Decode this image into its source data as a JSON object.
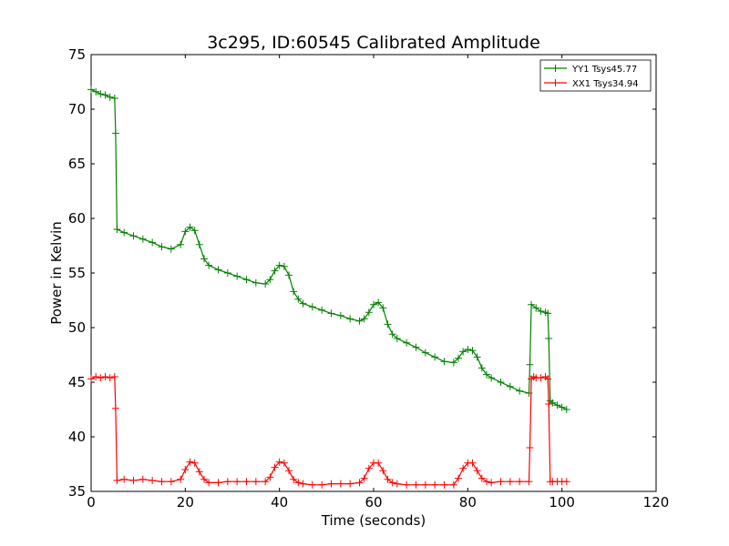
{
  "chart_data": {
    "type": "line",
    "title": "3c295, ID:60545 Calibrated Amplitude",
    "xlabel": "Time (seconds)",
    "ylabel": "Power in Kelvin",
    "xlim": [
      0,
      120
    ],
    "ylim": [
      35,
      75
    ],
    "xticks": [
      0,
      20,
      40,
      60,
      80,
      100,
      120
    ],
    "yticks": [
      35,
      40,
      45,
      50,
      55,
      60,
      65,
      70,
      75
    ],
    "grid": false,
    "legend_position": "top-right",
    "marker": "plus",
    "series": [
      {
        "name": "YY1 Tsys45.77",
        "color": "#008000",
        "x": [
          0,
          1,
          2,
          3,
          4,
          5,
          5.2,
          5.5,
          7,
          9,
          11,
          13,
          15,
          17,
          19,
          20,
          21,
          22,
          23,
          24,
          25,
          27,
          29,
          31,
          33,
          35,
          37,
          38,
          39,
          40,
          41,
          42,
          43,
          44,
          45,
          47,
          49,
          51,
          53,
          55,
          57,
          58,
          59,
          60,
          61,
          62,
          63,
          64,
          65,
          67,
          69,
          71,
          73,
          75,
          77,
          78,
          79,
          80,
          81,
          82,
          83,
          84,
          85,
          87,
          89,
          91,
          93,
          93.2,
          93.5,
          94.5,
          95.5,
          96.5,
          97,
          97.2,
          97.5,
          98,
          99,
          100,
          101
        ],
        "y": [
          71.8,
          71.6,
          71.4,
          71.3,
          71.1,
          71.0,
          67.8,
          59.0,
          58.7,
          58.4,
          58.1,
          57.8,
          57.4,
          57.2,
          57.6,
          58.8,
          59.2,
          58.9,
          57.6,
          56.3,
          55.7,
          55.3,
          55.0,
          54.7,
          54.4,
          54.1,
          54.0,
          54.4,
          55.2,
          55.7,
          55.6,
          54.8,
          53.3,
          52.6,
          52.2,
          51.9,
          51.6,
          51.3,
          51.1,
          50.8,
          50.6,
          50.8,
          51.4,
          52.1,
          52.3,
          51.8,
          50.3,
          49.4,
          49.0,
          48.6,
          48.2,
          47.7,
          47.3,
          46.9,
          46.8,
          47.2,
          47.8,
          48.0,
          47.9,
          47.3,
          46.3,
          45.7,
          45.4,
          45.0,
          44.6,
          44.2,
          44.0,
          46.6,
          52.1,
          51.8,
          51.5,
          51.4,
          51.3,
          49.0,
          43.3,
          43.1,
          42.9,
          42.7,
          42.5
        ]
      },
      {
        "name": "XX1 Tsys34.94",
        "color": "#ff0000",
        "x": [
          0,
          1,
          2,
          3,
          4,
          5,
          5.2,
          5.5,
          7,
          9,
          11,
          13,
          15,
          17,
          19,
          20,
          21,
          22,
          23,
          24,
          25,
          27,
          29,
          31,
          33,
          35,
          37,
          38,
          39,
          40,
          41,
          42,
          43,
          44,
          45,
          47,
          49,
          51,
          53,
          55,
          57,
          58,
          59,
          60,
          61,
          62,
          63,
          64,
          65,
          67,
          69,
          71,
          73,
          75,
          77,
          78,
          79,
          80,
          81,
          82,
          83,
          84,
          85,
          87,
          89,
          91,
          93,
          93.2,
          93.5,
          94,
          94.5,
          95.5,
          96.5,
          97,
          97.2,
          97.5,
          98,
          99,
          100,
          101
        ],
        "y": [
          45.3,
          45.5,
          45.4,
          45.5,
          45.4,
          45.5,
          42.6,
          36.0,
          36.1,
          36.0,
          36.1,
          36.0,
          35.9,
          35.9,
          36.1,
          37.0,
          37.7,
          37.6,
          36.8,
          36.1,
          35.8,
          35.8,
          35.9,
          35.9,
          35.9,
          35.9,
          35.9,
          36.3,
          37.2,
          37.7,
          37.6,
          36.9,
          36.1,
          35.8,
          35.7,
          35.6,
          35.6,
          35.7,
          35.7,
          35.7,
          35.8,
          36.2,
          37.1,
          37.6,
          37.6,
          36.9,
          36.1,
          35.8,
          35.7,
          35.6,
          35.6,
          35.6,
          35.6,
          35.6,
          35.6,
          36.2,
          37.1,
          37.6,
          37.6,
          36.9,
          36.2,
          35.9,
          35.8,
          35.9,
          35.9,
          35.9,
          35.9,
          39.0,
          45.3,
          45.5,
          45.4,
          45.4,
          45.5,
          45.3,
          43.0,
          35.9,
          35.9,
          35.9,
          35.9,
          35.9
        ]
      }
    ]
  }
}
